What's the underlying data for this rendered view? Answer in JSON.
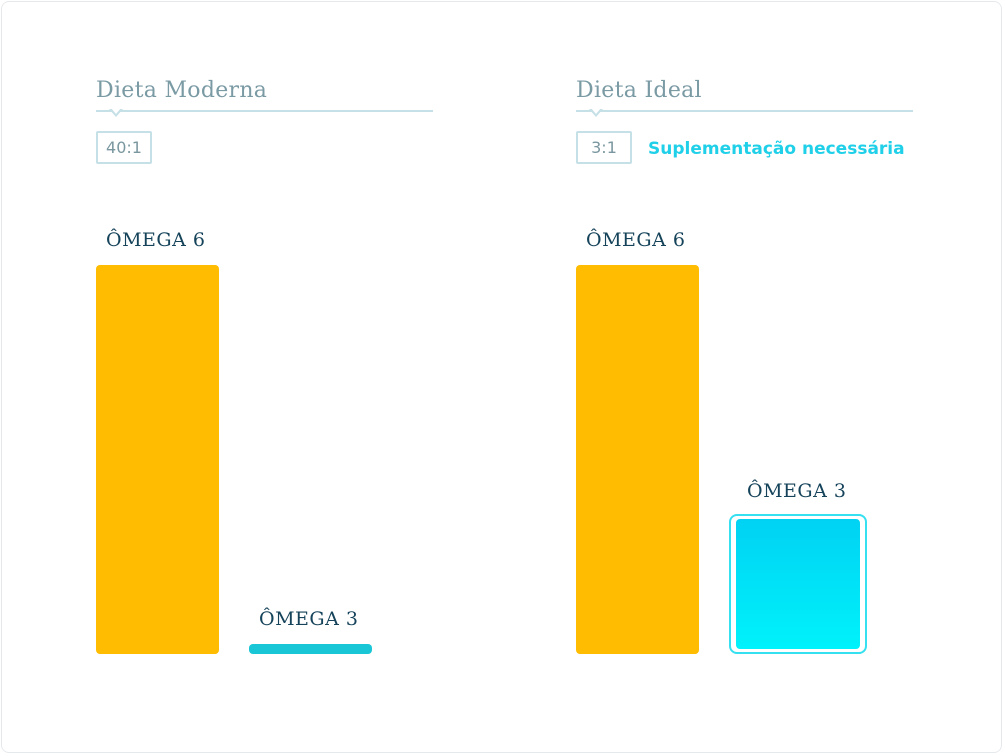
{
  "colors": {
    "title": "#7a9aa4",
    "note": "#1fd0e8",
    "omega6": "#ffbc00",
    "omega3_modern": "#19c6d6",
    "omega3_ideal_top": "#00d2f3",
    "omega3_ideal_bottom": "#00f2fb"
  },
  "chart_data": [
    {
      "type": "bar",
      "title": "Dieta Moderna",
      "ratio": "40:1",
      "categories": [
        "ÔMEGA 6",
        "ÔMEGA 3"
      ],
      "values": [
        40,
        1
      ],
      "ylim": [
        0,
        40
      ]
    },
    {
      "type": "bar",
      "title": "Dieta Ideal",
      "ratio": "3:1",
      "note": "Suplementação necessária",
      "categories": [
        "ÔMEGA 6",
        "ÔMEGA 3"
      ],
      "values": [
        3,
        1
      ],
      "ylim": [
        0,
        3
      ]
    }
  ]
}
